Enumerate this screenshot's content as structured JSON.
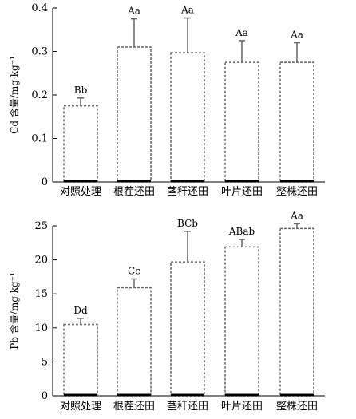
{
  "chart_data": [
    {
      "type": "bar",
      "categories": [
        "对照处理",
        "根茬还田",
        "茎秆还田",
        "叶片还田",
        "整株还田"
      ],
      "values": [
        0.175,
        0.31,
        0.297,
        0.275,
        0.275
      ],
      "errors": [
        0.018,
        0.065,
        0.08,
        0.05,
        0.045
      ],
      "data_labels": [
        "Bb",
        "Aa",
        "Aa",
        "Aa",
        "Aa"
      ],
      "ylabel": "Cd 含量/mg·kg⁻¹",
      "ylim": [
        0,
        0.4
      ],
      "yticks": [
        0,
        0.1,
        0.2,
        0.3,
        0.4
      ],
      "ytick_labels": [
        "0",
        "0.1",
        "0.2",
        "0.3",
        "0.4"
      ],
      "grid": false,
      "bar_color": "#ffffff",
      "bar_border": "#666666"
    },
    {
      "type": "bar",
      "categories": [
        "对照处理",
        "根茬还田",
        "茎秆还田",
        "叶片还田",
        "整株还田"
      ],
      "values": [
        10.5,
        15.9,
        19.7,
        21.9,
        24.6
      ],
      "errors": [
        0.9,
        1.3,
        4.5,
        1.1,
        0.7
      ],
      "data_labels": [
        "Dd",
        "Cc",
        "BCb",
        "ABab",
        "Aa"
      ],
      "ylabel": "Pb 含量/mg·kg⁻¹",
      "ylim": [
        0,
        25
      ],
      "yticks": [
        0,
        5,
        10,
        15,
        20,
        25
      ],
      "ytick_labels": [
        "0",
        "5",
        "10",
        "15",
        "20",
        "25"
      ],
      "grid": false,
      "bar_color": "#ffffff",
      "bar_border": "#666666"
    }
  ]
}
